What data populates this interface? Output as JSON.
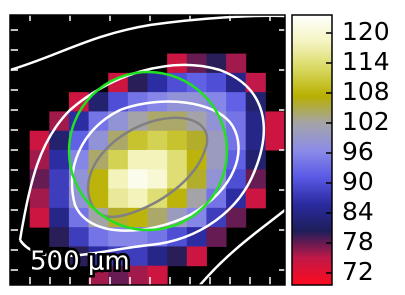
{
  "chart_data": {
    "type": "heatmap",
    "annotation": "500 μm",
    "z": [
      [
        null,
        null,
        null,
        null,
        null,
        null,
        null,
        null,
        null,
        null,
        null,
        null,
        null,
        null
      ],
      [
        null,
        null,
        null,
        null,
        null,
        null,
        null,
        null,
        null,
        null,
        null,
        null,
        null,
        null
      ],
      [
        null,
        null,
        null,
        null,
        null,
        null,
        null,
        null,
        74,
        78,
        80,
        76,
        null,
        null
      ],
      [
        null,
        null,
        null,
        null,
        null,
        74,
        80,
        86,
        90,
        92,
        90,
        84,
        75,
        null
      ],
      [
        null,
        null,
        null,
        74,
        82,
        90,
        94,
        96,
        98,
        98,
        96,
        92,
        82,
        null
      ],
      [
        null,
        null,
        76,
        86,
        94,
        98,
        102,
        104,
        104,
        102,
        98,
        94,
        84,
        74
      ],
      [
        null,
        74,
        82,
        92,
        98,
        104,
        110,
        112,
        110,
        106,
        100,
        94,
        84,
        74
      ],
      [
        null,
        76,
        86,
        96,
        104,
        112,
        118,
        118,
        114,
        108,
        100,
        92,
        82,
        null
      ],
      [
        null,
        78,
        88,
        98,
        108,
        118,
        122,
        120,
        114,
        106,
        98,
        90,
        78,
        null
      ],
      [
        null,
        76,
        88,
        98,
        108,
        116,
        118,
        114,
        108,
        102,
        94,
        86,
        74,
        null
      ],
      [
        null,
        74,
        84,
        94,
        102,
        106,
        108,
        104,
        100,
        96,
        88,
        78,
        null,
        null
      ],
      [
        null,
        null,
        80,
        88,
        94,
        96,
        96,
        94,
        90,
        86,
        78,
        null,
        null,
        null
      ],
      [
        null,
        null,
        null,
        80,
        86,
        88,
        88,
        84,
        80,
        74,
        null,
        null,
        null,
        null
      ],
      [
        null,
        null,
        null,
        null,
        76,
        78,
        76,
        74,
        null,
        null,
        null,
        null,
        null,
        null
      ]
    ],
    "clim": [
      69.6,
      123.6
    ],
    "cbar_ticks": [
      72,
      78,
      84,
      90,
      96,
      102,
      108,
      114,
      120
    ],
    "colormap": [
      "#ff0a1e",
      "#c01848",
      "#1e1e5a",
      "#2a2aa0",
      "#5a5ae6",
      "#8c8ce8",
      "#a4a4a8",
      "#b8b000",
      "#d8d860",
      "#f4f4c0",
      "#ffffff"
    ],
    "background": "#000000"
  }
}
